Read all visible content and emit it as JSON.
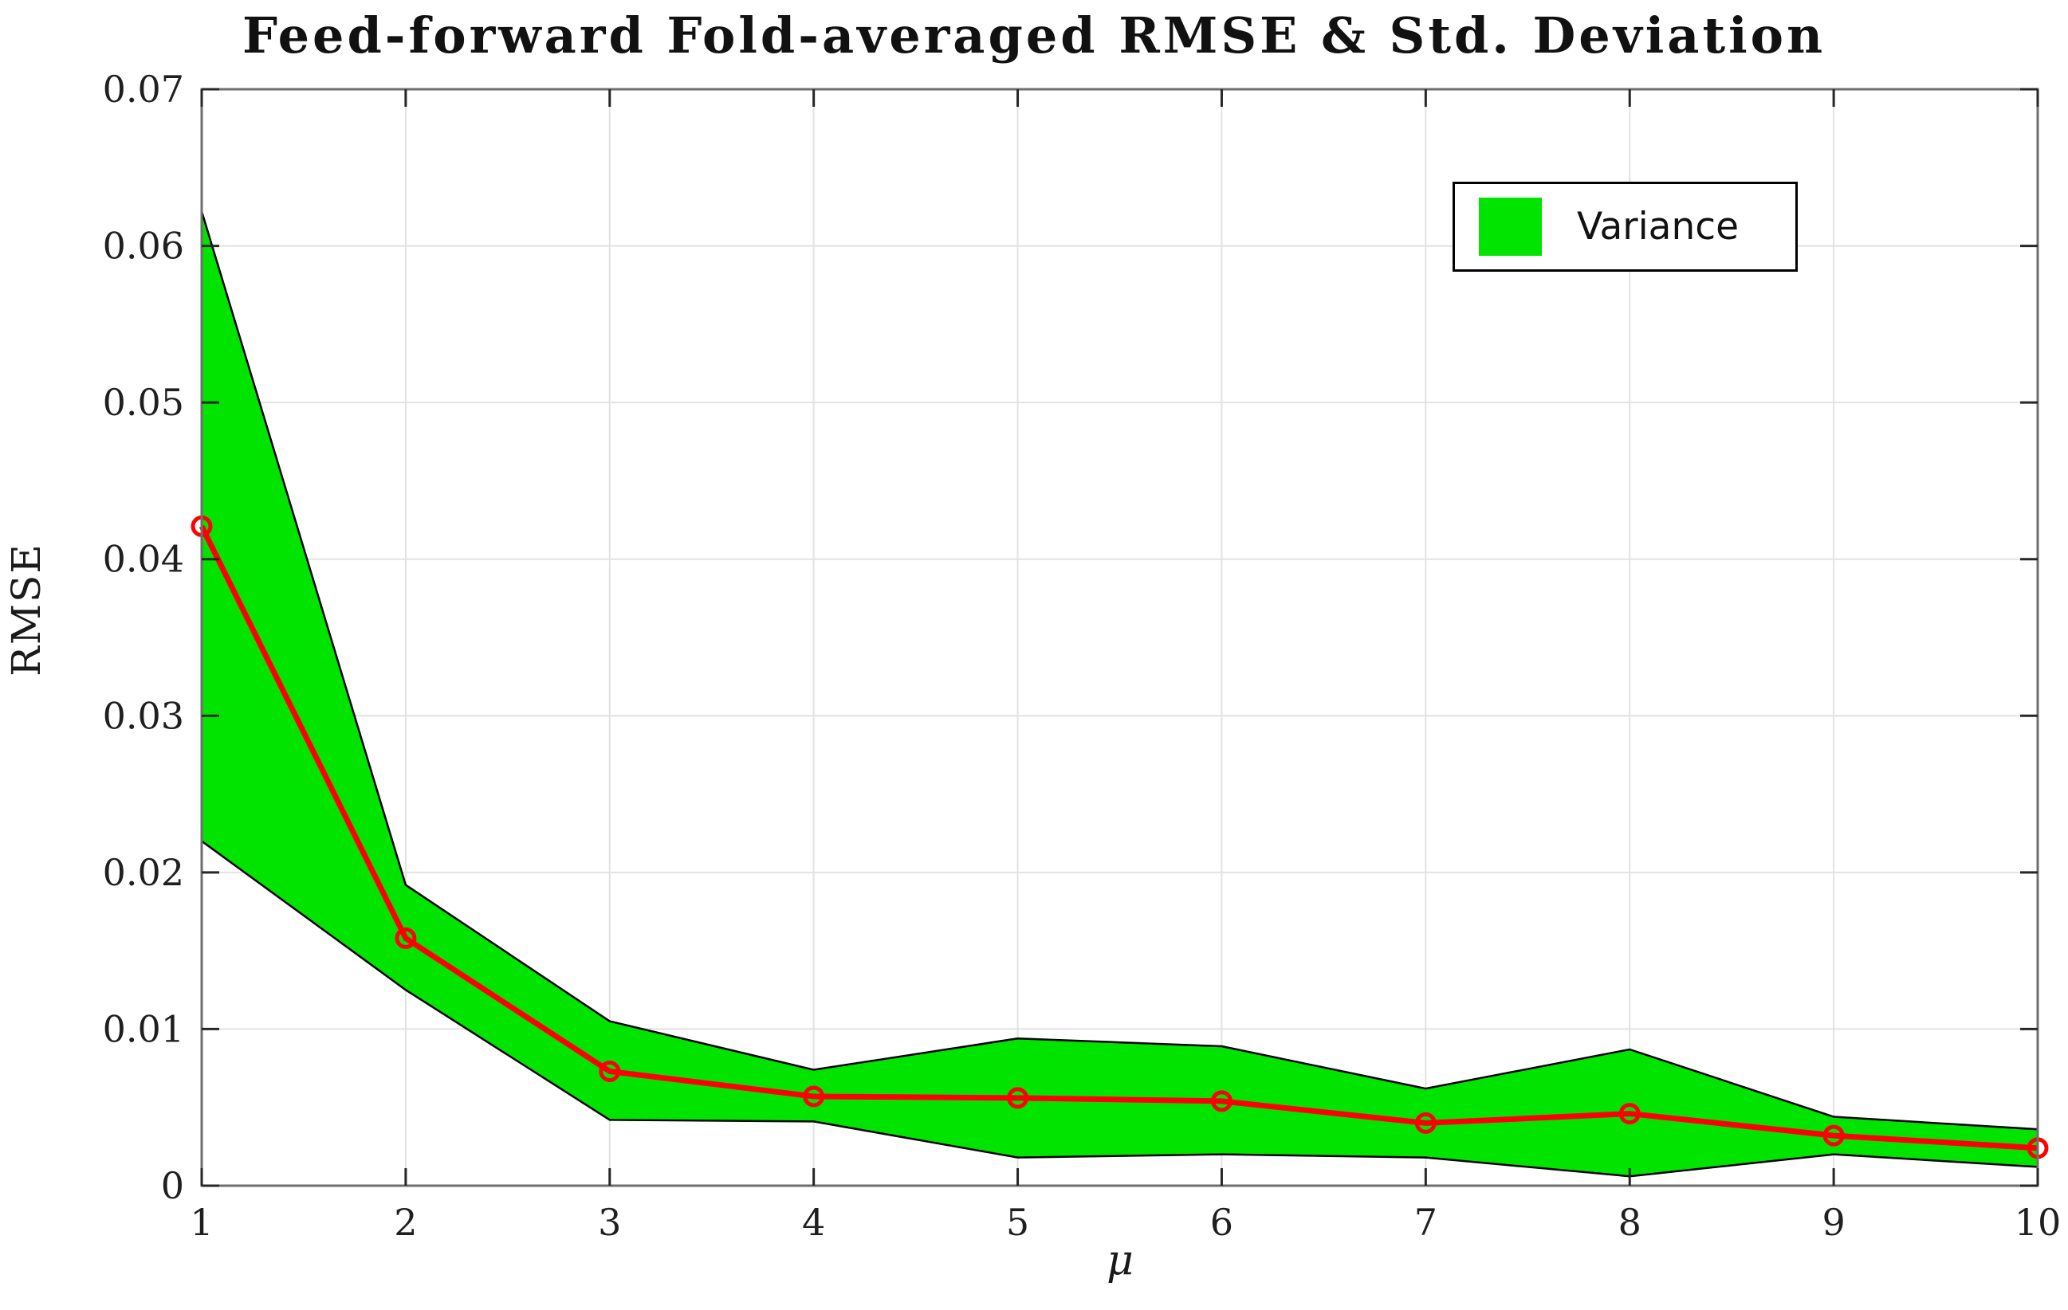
{
  "page": {
    "background": "#ffffff"
  },
  "chart_data": {
    "type": "line",
    "title": "Feed-forward Fold-averaged RMSE & Std. Deviation",
    "xlabel": "μ",
    "ylabel": "RMSE",
    "x": [
      1,
      2,
      3,
      4,
      5,
      6,
      7,
      8,
      9,
      10
    ],
    "series": [
      {
        "name": "Fold-averaged RMSE",
        "color": "#ff0000",
        "marker": "open-circle",
        "values": [
          0.0421,
          0.0158,
          0.0073,
          0.0057,
          0.0056,
          0.0054,
          0.004,
          0.0046,
          0.0032,
          0.0024
        ]
      }
    ],
    "band": {
      "name": "Variance",
      "fill_color": "#00e400",
      "edge_color": "#000000",
      "upper": [
        0.0622,
        0.0192,
        0.0105,
        0.0074,
        0.0094,
        0.0089,
        0.0062,
        0.0087,
        0.0044,
        0.0036
      ],
      "lower": [
        0.022,
        0.0125,
        0.0042,
        0.0041,
        0.0018,
        0.002,
        0.0018,
        0.0006,
        0.002,
        0.0012
      ]
    },
    "xlim": [
      1,
      10
    ],
    "ylim": [
      0,
      0.07
    ],
    "x_ticks": [
      "1",
      "2",
      "3",
      "4",
      "5",
      "6",
      "7",
      "8",
      "9",
      "10"
    ],
    "y_ticks": [
      "0",
      "0.01",
      "0.02",
      "0.03",
      "0.04",
      "0.05",
      "0.06",
      "0.07"
    ],
    "grid": true,
    "grid_color": "#e2e2e2",
    "axis_box_color": "#6e6e6e",
    "tick_color": "#262626",
    "legend": {
      "position": "top-right",
      "entries": [
        {
          "label": "Variance",
          "swatch_color": "#00e400"
        }
      ]
    }
  }
}
